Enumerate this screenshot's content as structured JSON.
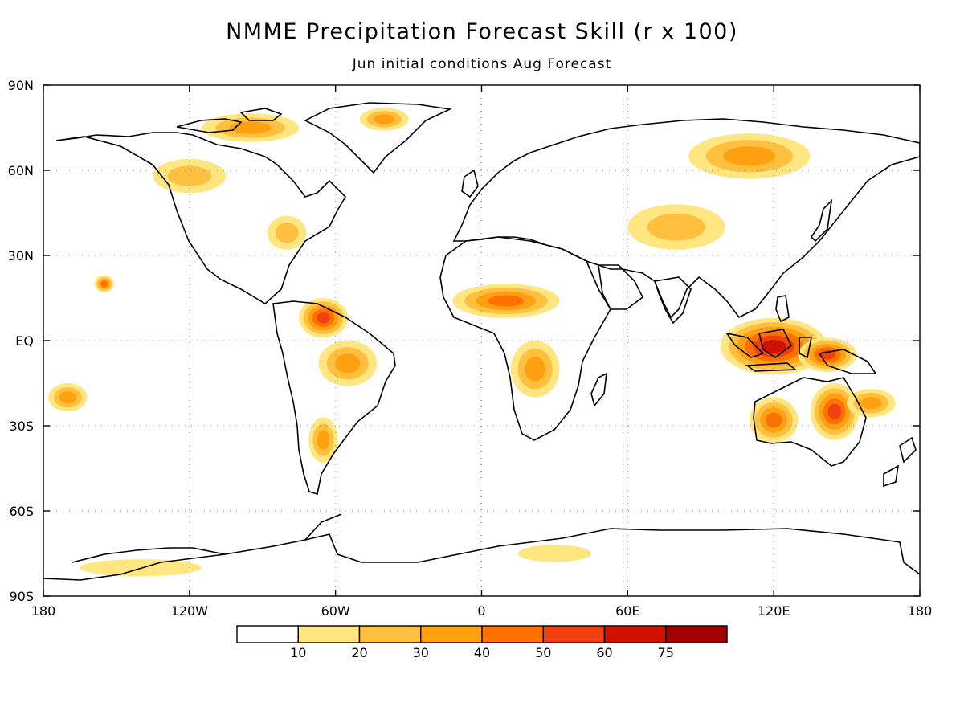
{
  "title": "NMME Precipitation Forecast Skill (r x 100)",
  "subtitle": "Jun initial conditions   Aug Forecast",
  "map": {
    "lon_range": [
      -180,
      180
    ],
    "lat_range": [
      -90,
      90
    ],
    "y_ticks": [
      {
        "lat": 90,
        "label": "90N"
      },
      {
        "lat": 60,
        "label": "60N"
      },
      {
        "lat": 30,
        "label": "30N"
      },
      {
        "lat": 0,
        "label": "EQ"
      },
      {
        "lat": -30,
        "label": "30S"
      },
      {
        "lat": -60,
        "label": "60S"
      },
      {
        "lat": -90,
        "label": "90S"
      }
    ],
    "x_ticks": [
      {
        "lon": -180,
        "label": "180"
      },
      {
        "lon": -120,
        "label": "120W"
      },
      {
        "lon": -60,
        "label": "60W"
      },
      {
        "lon": 0,
        "label": "0"
      },
      {
        "lon": 60,
        "label": "60E"
      },
      {
        "lon": 120,
        "label": "120E"
      },
      {
        "lon": 180,
        "label": "180"
      }
    ],
    "grid": true
  },
  "colorbar": {
    "colors": [
      "#ffffff",
      "#ffe680",
      "#ffc040",
      "#ffa010",
      "#ff7000",
      "#f04010",
      "#d01000",
      "#a00000"
    ],
    "labels": [
      "10",
      "20",
      "30",
      "40",
      "50",
      "60",
      "75"
    ]
  },
  "skill_regions": [
    {
      "name": "Maritime Continent",
      "lon": 120,
      "lat": -2,
      "rlon": 22,
      "rlat": 10,
      "level": 6
    },
    {
      "name": "New Guinea",
      "lon": 142,
      "lat": -5,
      "rlon": 12,
      "rlat": 6,
      "level": 5
    },
    {
      "name": "Eastern Australia",
      "lon": 145,
      "lat": -25,
      "rlon": 10,
      "rlat": 10,
      "level": 5
    },
    {
      "name": "Western Australia",
      "lon": 120,
      "lat": -28,
      "rlon": 10,
      "rlat": 8,
      "level": 4
    },
    {
      "name": "Northern South America",
      "lon": -65,
      "lat": 8,
      "rlon": 10,
      "rlat": 7,
      "level": 5
    },
    {
      "name": "Amazon",
      "lon": -55,
      "lat": -8,
      "rlon": 12,
      "rlat": 8,
      "level": 3
    },
    {
      "name": "Sahel",
      "lon": 10,
      "lat": 14,
      "rlon": 22,
      "rlat": 6,
      "level": 4
    },
    {
      "name": "Central Africa",
      "lon": 22,
      "lat": -10,
      "rlon": 10,
      "rlat": 10,
      "level": 3
    },
    {
      "name": "East Siberia",
      "lon": 110,
      "lat": 65,
      "rlon": 25,
      "rlat": 8,
      "level": 3
    },
    {
      "name": "Central Asia",
      "lon": 80,
      "lat": 40,
      "rlon": 20,
      "rlat": 8,
      "level": 2
    },
    {
      "name": "Canadian Archipelago",
      "lon": -95,
      "lat": 75,
      "rlon": 20,
      "rlat": 5,
      "level": 3
    },
    {
      "name": "Alaska/Canada",
      "lon": -120,
      "lat": 58,
      "rlon": 15,
      "rlat": 6,
      "level": 2
    },
    {
      "name": "Eastern US",
      "lon": -80,
      "lat": 38,
      "rlon": 8,
      "rlat": 6,
      "level": 2
    },
    {
      "name": "Argentina",
      "lon": -65,
      "lat": -35,
      "rlon": 6,
      "rlat": 8,
      "level": 3
    },
    {
      "name": "Greenland",
      "lon": -40,
      "lat": 78,
      "rlon": 10,
      "rlat": 4,
      "level": 3
    },
    {
      "name": "Antarctica West",
      "lon": -140,
      "lat": -80,
      "rlon": 25,
      "rlat": 3,
      "level": 1
    },
    {
      "name": "Antarctica East",
      "lon": 30,
      "lat": -75,
      "rlon": 15,
      "rlat": 3,
      "level": 1
    },
    {
      "name": "South Pacific",
      "lon": -170,
      "lat": -20,
      "rlon": 8,
      "rlat": 5,
      "level": 3
    },
    {
      "name": "Hawaii",
      "lon": -155,
      "lat": 20,
      "rlon": 4,
      "rlat": 3,
      "level": 4
    },
    {
      "name": "SE Pacific",
      "lon": 160,
      "lat": -22,
      "rlon": 10,
      "rlat": 5,
      "level": 3
    }
  ]
}
